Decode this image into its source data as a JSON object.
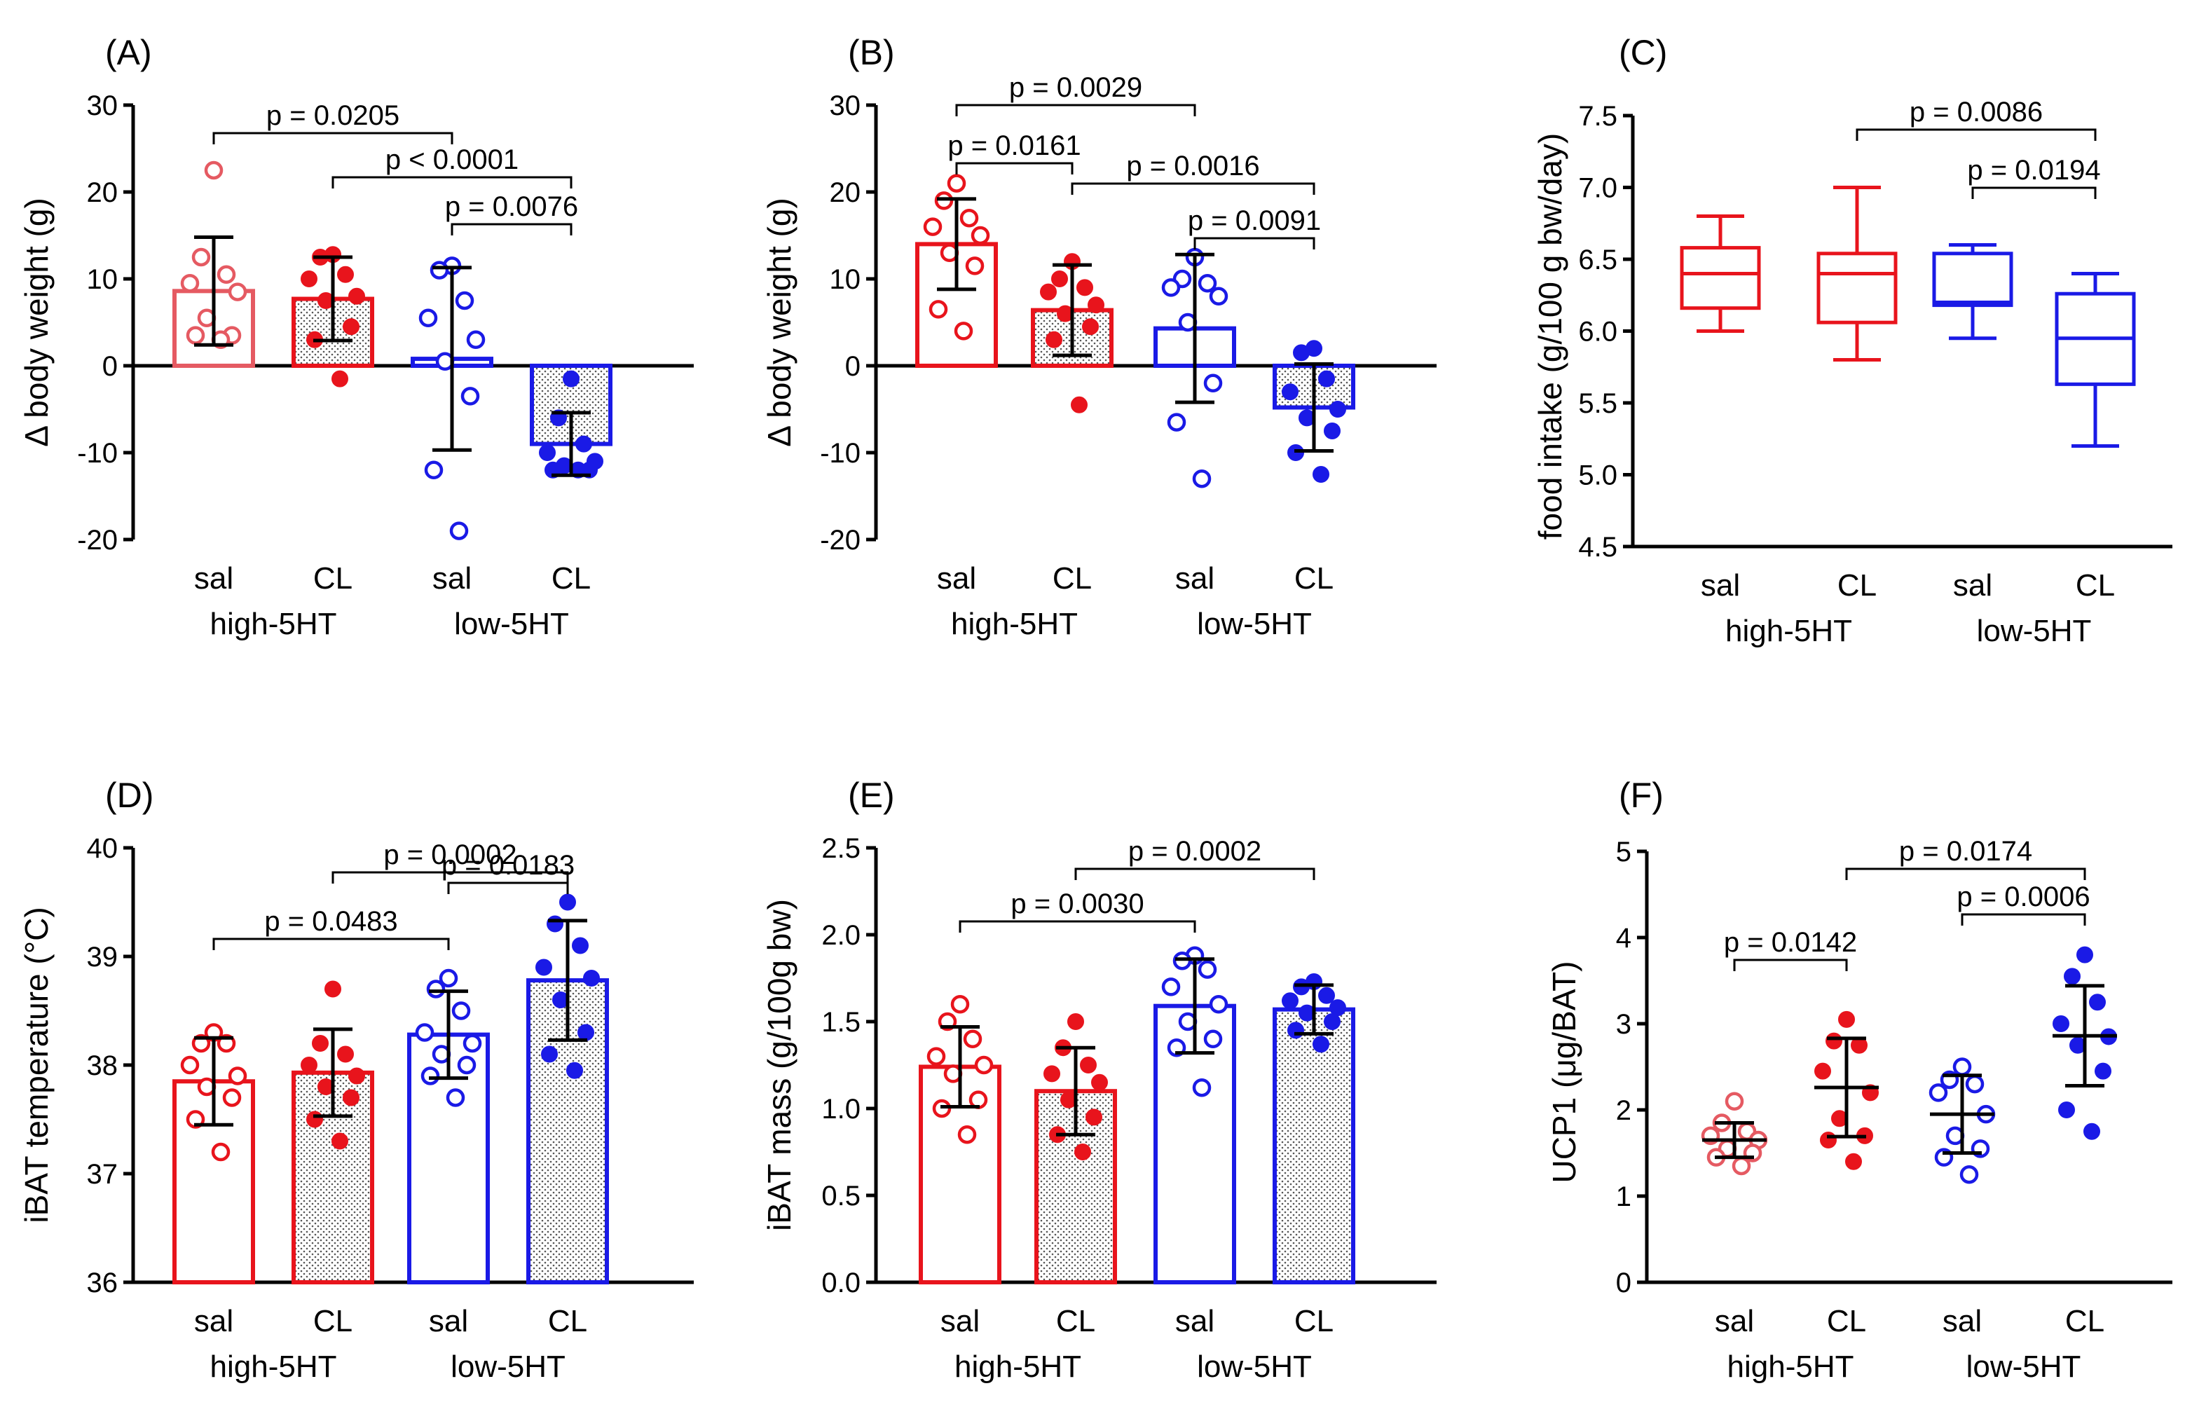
{
  "colors": {
    "red": "#e8141c",
    "pink": "#e55a62",
    "blue": "#1a1ae6",
    "black": "#000000"
  },
  "chart_data": [
    {
      "panel": "(A)",
      "type": "bar",
      "ylabel": "Δ body weight (g)",
      "ylim": [
        -20,
        30
      ],
      "yticks": [
        -20,
        -10,
        0,
        10,
        20,
        30
      ],
      "categories": [
        "sal",
        "CL",
        "sal",
        "CL"
      ],
      "groups": [
        {
          "label": "high-5HT",
          "members": [
            0,
            1
          ]
        },
        {
          "label": "low-5HT",
          "members": [
            2,
            3
          ]
        }
      ],
      "series": [
        {
          "name": "high-5HT sal",
          "color": "pink",
          "filled": false,
          "hatched": false,
          "mean": 8.6,
          "sd": 6.2,
          "points": [
            22.5,
            12.5,
            10.5,
            9.5,
            8.5,
            5.5,
            3.5,
            3.5,
            3.0
          ]
        },
        {
          "name": "high-5HT CL",
          "color": "red",
          "filled": true,
          "hatched": true,
          "mean": 7.7,
          "sd": 4.8,
          "points": [
            12.8,
            12.5,
            10.5,
            10.0,
            8.0,
            7.5,
            4.5,
            3.0,
            -1.5
          ]
        },
        {
          "name": "low-5HT sal",
          "color": "blue",
          "filled": false,
          "hatched": false,
          "mean": 0.8,
          "sd": 10.5,
          "points": [
            11.5,
            11.0,
            7.5,
            5.5,
            3.0,
            0.5,
            -3.5,
            -12.0,
            -19.0
          ]
        },
        {
          "name": "low-5HT CL",
          "color": "blue",
          "filled": true,
          "hatched": true,
          "mean": -9.0,
          "sd": 3.6,
          "points": [
            -1.5,
            -6.0,
            -9.0,
            -10.0,
            -11.0,
            -11.5,
            -12.0,
            -12.0,
            -12.0
          ]
        }
      ],
      "comparisons": [
        {
          "from": 0,
          "to": 2,
          "level": 0,
          "label": "p = 0.0205"
        },
        {
          "from": 1,
          "to": 3,
          "level": 1,
          "label": "p < 0.0001"
        },
        {
          "from": 2,
          "to": 3,
          "level": 2,
          "label": "p = 0.0076"
        }
      ]
    },
    {
      "panel": "(B)",
      "type": "bar",
      "ylabel": "Δ body weight (g)",
      "ylim": [
        -20,
        30
      ],
      "yticks": [
        -20,
        -10,
        0,
        10,
        20,
        30
      ],
      "categories": [
        "sal",
        "CL",
        "sal",
        "CL"
      ],
      "groups": [
        {
          "label": "high-5HT",
          "members": [
            0,
            1
          ]
        },
        {
          "label": "low-5HT",
          "members": [
            2,
            3
          ]
        }
      ],
      "series": [
        {
          "name": "high-5HT sal",
          "color": "red",
          "filled": false,
          "hatched": false,
          "mean": 14.0,
          "sd": 5.2,
          "points": [
            21.0,
            19.0,
            17.0,
            16.0,
            15.0,
            13.0,
            11.5,
            6.5,
            4.0
          ]
        },
        {
          "name": "high-5HT CL",
          "color": "red",
          "filled": true,
          "hatched": true,
          "mean": 6.4,
          "sd": 5.2,
          "points": [
            12.0,
            10.0,
            9.0,
            8.5,
            7.0,
            6.0,
            4.5,
            3.0,
            -4.5
          ]
        },
        {
          "name": "low-5HT sal",
          "color": "blue",
          "filled": false,
          "hatched": false,
          "mean": 4.3,
          "sd": 8.5,
          "points": [
            12.5,
            10.0,
            9.5,
            9.0,
            8.0,
            5.0,
            -2.0,
            -6.5,
            -13.0
          ]
        },
        {
          "name": "low-5HT CL",
          "color": "blue",
          "filled": true,
          "hatched": true,
          "mean": -4.8,
          "sd": 5.0,
          "points": [
            2.0,
            1.5,
            -1.5,
            -3.0,
            -5.0,
            -6.0,
            -7.5,
            -10.0,
            -12.5
          ]
        }
      ],
      "comparisons": [
        {
          "from": 0,
          "to": 2,
          "level": 0,
          "label": "p = 0.0029"
        },
        {
          "from": 0,
          "to": 1,
          "level": 1,
          "label": "p = 0.0161"
        },
        {
          "from": 1,
          "to": 3,
          "level": 2,
          "label": "p = 0.0016"
        },
        {
          "from": 2,
          "to": 3,
          "level": 3,
          "label": "p = 0.0091"
        }
      ]
    },
    {
      "panel": "(C)",
      "type": "box",
      "ylabel": "food intake (g/100 g bw/day)",
      "ylim": [
        4.5,
        7.5
      ],
      "yticks": [
        4.5,
        5.0,
        5.5,
        6.0,
        6.5,
        7.0,
        7.5
      ],
      "categories": [
        "sal",
        "CL",
        "sal",
        "CL"
      ],
      "groups": [
        {
          "label": "high-5HT",
          "members": [
            0,
            1
          ]
        },
        {
          "label": "low-5HT",
          "members": [
            2,
            3
          ]
        }
      ],
      "series": [
        {
          "name": "high-5HT sal",
          "color": "red",
          "min": 6.0,
          "q1": 6.16,
          "median": 6.4,
          "q3": 6.58,
          "max": 6.8
        },
        {
          "name": "high-5HT CL",
          "color": "red",
          "min": 5.8,
          "q1": 6.06,
          "median": 6.4,
          "q3": 6.54,
          "max": 7.0
        },
        {
          "name": "low-5HT sal",
          "color": "blue",
          "min": 5.95,
          "q1": 6.18,
          "median": 6.2,
          "q3": 6.54,
          "max": 6.6
        },
        {
          "name": "low-5HT CL",
          "color": "blue",
          "min": 5.2,
          "q1": 5.63,
          "median": 5.95,
          "q3": 6.26,
          "max": 6.4
        }
      ],
      "comparisons": [
        {
          "from": 1,
          "to": 3,
          "level": 0,
          "label": "p = 0.0086"
        },
        {
          "from": 2,
          "to": 3,
          "level": 1,
          "label": "p = 0.0194"
        }
      ]
    },
    {
      "panel": "(D)",
      "type": "bar",
      "ylabel": "iBAT temperature (°C)",
      "ylim": [
        36,
        40
      ],
      "yticks": [
        36,
        37,
        38,
        39,
        40
      ],
      "categories": [
        "sal",
        "CL",
        "sal",
        "CL"
      ],
      "groups": [
        {
          "label": "high-5HT",
          "members": [
            0,
            1
          ]
        },
        {
          "label": "low-5HT",
          "members": [
            2,
            3
          ]
        }
      ],
      "series": [
        {
          "name": "high-5HT sal",
          "color": "red",
          "filled": false,
          "hatched": false,
          "mean": 37.85,
          "sd": 0.4,
          "points": [
            38.3,
            38.2,
            38.2,
            38.0,
            37.9,
            37.8,
            37.7,
            37.5,
            37.2
          ]
        },
        {
          "name": "high-5HT CL",
          "color": "red",
          "filled": true,
          "hatched": true,
          "mean": 37.93,
          "sd": 0.4,
          "points": [
            38.7,
            38.2,
            38.1,
            38.0,
            37.9,
            37.8,
            37.7,
            37.5,
            37.3
          ]
        },
        {
          "name": "low-5HT sal",
          "color": "blue",
          "filled": false,
          "hatched": false,
          "mean": 38.28,
          "sd": 0.4,
          "points": [
            38.8,
            38.7,
            38.5,
            38.3,
            38.2,
            38.1,
            38.0,
            37.9,
            37.7
          ]
        },
        {
          "name": "low-5HT CL",
          "color": "blue",
          "filled": true,
          "hatched": true,
          "mean": 38.78,
          "sd": 0.55,
          "points": [
            39.5,
            39.3,
            39.1,
            38.9,
            38.8,
            38.6,
            38.3,
            38.1,
            37.95
          ]
        }
      ],
      "comparisons": [
        {
          "from": 1,
          "to": 3,
          "level": 0,
          "label": "p = 0.0002"
        },
        {
          "from": 2,
          "to": 3,
          "level": 1,
          "label": "p = 0.0183"
        },
        {
          "from": 0,
          "to": 2,
          "level": 2,
          "label": "p = 0.0483"
        }
      ]
    },
    {
      "panel": "(E)",
      "type": "bar",
      "ylabel": "iBAT mass (g/100g bw)",
      "ylim": [
        0,
        2.5
      ],
      "yticks": [
        0.0,
        0.5,
        1.0,
        1.5,
        2.0,
        2.5
      ],
      "categories": [
        "sal",
        "CL",
        "sal",
        "CL"
      ],
      "groups": [
        {
          "label": "high-5HT",
          "members": [
            0,
            1
          ]
        },
        {
          "label": "low-5HT",
          "members": [
            2,
            3
          ]
        }
      ],
      "series": [
        {
          "name": "high-5HT sal",
          "color": "red",
          "filled": false,
          "hatched": false,
          "mean": 1.24,
          "sd": 0.23,
          "points": [
            1.6,
            1.5,
            1.4,
            1.3,
            1.25,
            1.2,
            1.05,
            1.0,
            0.85
          ]
        },
        {
          "name": "high-5HT CL",
          "color": "red",
          "filled": true,
          "hatched": true,
          "mean": 1.1,
          "sd": 0.25,
          "points": [
            1.5,
            1.35,
            1.25,
            1.2,
            1.15,
            1.05,
            0.95,
            0.85,
            0.75
          ]
        },
        {
          "name": "low-5HT sal",
          "color": "blue",
          "filled": false,
          "hatched": false,
          "mean": 1.59,
          "sd": 0.27,
          "points": [
            1.88,
            1.85,
            1.8,
            1.7,
            1.6,
            1.5,
            1.4,
            1.35,
            1.12
          ]
        },
        {
          "name": "low-5HT CL",
          "color": "blue",
          "filled": true,
          "hatched": true,
          "mean": 1.57,
          "sd": 0.14,
          "points": [
            1.73,
            1.7,
            1.65,
            1.62,
            1.58,
            1.55,
            1.5,
            1.45,
            1.37
          ]
        }
      ],
      "comparisons": [
        {
          "from": 1,
          "to": 3,
          "level": 0,
          "label": "p = 0.0002"
        },
        {
          "from": 0,
          "to": 2,
          "level": 1,
          "label": "p = 0.0030"
        }
      ]
    },
    {
      "panel": "(F)",
      "type": "scatter",
      "ylabel": "UCP1 (μg/BAT)",
      "ylim": [
        0,
        5
      ],
      "yticks": [
        0,
        1,
        2,
        3,
        4,
        5
      ],
      "categories": [
        "sal",
        "CL",
        "sal",
        "CL"
      ],
      "groups": [
        {
          "label": "high-5HT",
          "members": [
            0,
            1
          ]
        },
        {
          "label": "low-5HT",
          "members": [
            2,
            3
          ]
        }
      ],
      "series": [
        {
          "name": "high-5HT sal",
          "color": "pink",
          "filled": false,
          "mean": 1.65,
          "sd": 0.2,
          "points": [
            2.1,
            1.85,
            1.75,
            1.7,
            1.65,
            1.55,
            1.5,
            1.45,
            1.35
          ]
        },
        {
          "name": "high-5HT CL",
          "color": "red",
          "filled": true,
          "mean": 2.26,
          "sd": 0.57,
          "points": [
            3.05,
            2.8,
            2.75,
            2.45,
            2.2,
            1.9,
            1.7,
            1.65,
            1.4
          ]
        },
        {
          "name": "low-5HT sal",
          "color": "blue",
          "filled": false,
          "mean": 1.95,
          "sd": 0.45,
          "points": [
            2.5,
            2.35,
            2.3,
            2.2,
            1.95,
            1.7,
            1.55,
            1.45,
            1.25
          ]
        },
        {
          "name": "low-5HT CL",
          "color": "blue",
          "filled": true,
          "mean": 2.86,
          "sd": 0.58,
          "points": [
            3.8,
            3.55,
            3.25,
            3.0,
            2.85,
            2.75,
            2.45,
            2.0,
            1.75
          ]
        }
      ],
      "comparisons": [
        {
          "from": 1,
          "to": 3,
          "level": 0,
          "label": "p = 0.0174"
        },
        {
          "from": 2,
          "to": 3,
          "level": 1,
          "label": "p = 0.0006"
        },
        {
          "from": 0,
          "to": 1,
          "level": 2,
          "label": "p = 0.0142"
        }
      ]
    }
  ]
}
